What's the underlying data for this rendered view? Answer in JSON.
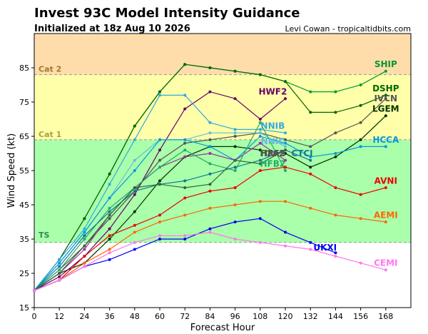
{
  "chart_data": {
    "type": "line",
    "title": "Invest 93C Model Intensity Guidance",
    "subtitle": "Initialized at 18z Aug 10 2026",
    "credit": "Levi Cowan - tropicaltidbits.com",
    "xlabel": "Forecast Hour",
    "ylabel": "Wind Speed (kt)",
    "xlim": [
      0,
      180
    ],
    "ylim": [
      15,
      95
    ],
    "x_ticks": [
      0,
      12,
      24,
      36,
      48,
      60,
      72,
      84,
      96,
      108,
      120,
      132,
      144,
      156,
      168
    ],
    "y_ticks": [
      15,
      25,
      35,
      45,
      55,
      65,
      75,
      85
    ],
    "bands": [
      {
        "label": "TS",
        "from": 34,
        "to": 64,
        "color": "#aaffaa",
        "label_color": "#2e8b57"
      },
      {
        "label": "Cat 1",
        "from": 64,
        "to": 83,
        "color": "#ffffaa",
        "label_color": "#a8a040"
      },
      {
        "label": "Cat 2",
        "from": 83,
        "to": 95,
        "color": "#ffddaa",
        "label_color": "#a07830"
      }
    ],
    "series": [
      {
        "name": "SHIP",
        "color": "#009933",
        "x": [
          0,
          12,
          24,
          36,
          48,
          60,
          72,
          84,
          96,
          108,
          120,
          132,
          144,
          156,
          168
        ],
        "y": [
          20,
          29,
          41,
          54,
          68,
          78,
          86,
          85,
          84,
          83,
          81,
          78,
          78,
          80,
          84
        ]
      },
      {
        "name": "DSHP",
        "color": "#006600",
        "x": [
          0,
          12,
          24,
          36,
          48,
          60,
          72,
          84,
          96,
          108,
          120,
          132,
          144,
          156,
          168
        ],
        "y": [
          20,
          29,
          41,
          54,
          68,
          78,
          86,
          85,
          84,
          83,
          81,
          72,
          72,
          74,
          77
        ]
      },
      {
        "name": "IVCN",
        "color": "#555555",
        "x": [
          0,
          12,
          24,
          36,
          48,
          60,
          72,
          84,
          96,
          108,
          120,
          132,
          144,
          156,
          168
        ],
        "y": [
          20,
          26,
          33,
          41,
          49,
          58,
          63,
          64,
          65,
          66,
          64,
          62,
          66,
          69,
          76
        ]
      },
      {
        "name": "LGEM",
        "color": "#003300",
        "x": [
          0,
          12,
          24,
          36,
          48,
          60,
          72,
          84,
          96,
          108,
          120,
          132,
          144,
          156,
          168
        ],
        "y": [
          20,
          25,
          28,
          35,
          43,
          52,
          59,
          62,
          62,
          61,
          60,
          56,
          59,
          64,
          71
        ]
      },
      {
        "name": "HWF2",
        "color": "#660066",
        "x": [
          0,
          12,
          24,
          36,
          48,
          60,
          72,
          84,
          96,
          108,
          120
        ],
        "y": [
          20,
          24,
          30,
          38,
          48,
          61,
          73,
          78,
          76,
          70,
          76
        ]
      },
      {
        "name": "NNIB",
        "color": "#33aadd",
        "x": [
          0,
          12,
          24,
          36,
          48,
          60,
          72,
          84,
          96,
          108,
          120
        ],
        "y": [
          20,
          29,
          38,
          51,
          64,
          77,
          77,
          69,
          67,
          67,
          66
        ]
      },
      {
        "name": "NNIC",
        "color": "#66bbdd",
        "x": [
          0,
          12,
          24,
          36,
          48,
          60,
          72,
          84,
          96,
          108,
          120
        ],
        "y": [
          20,
          28,
          37,
          47,
          58,
          64,
          64,
          66,
          66,
          66,
          62
        ]
      },
      {
        "name": "HCCA",
        "color": "#0099dd",
        "x": [
          0,
          12,
          24,
          36,
          48,
          60,
          72,
          84,
          96,
          108,
          120,
          132,
          144,
          156,
          168
        ],
        "y": [
          20,
          28,
          37,
          47,
          55,
          64,
          64,
          62,
          58,
          65,
          63,
          59,
          60,
          62,
          62
        ]
      },
      {
        "name": "HAFS",
        "color": "#993399",
        "x": [
          0,
          12,
          24,
          36,
          48,
          60,
          72,
          84,
          96,
          108,
          120
        ],
        "y": [
          20,
          25,
          32,
          42,
          50,
          56,
          59,
          60,
          58,
          63,
          58
        ]
      },
      {
        "name": "HFB2",
        "color": "#22aa66",
        "x": [
          0,
          12,
          24,
          36,
          48,
          60,
          72,
          84,
          96,
          108,
          120
        ],
        "y": [
          20,
          26,
          35,
          44,
          50,
          56,
          61,
          57,
          55,
          69,
          55
        ]
      },
      {
        "name": "CTCI",
        "color": "#117799",
        "x": [
          0,
          12,
          24,
          36,
          48,
          60,
          72,
          84,
          96,
          108,
          120,
          132
        ],
        "y": [
          20,
          27,
          36,
          43,
          49,
          51,
          52,
          54,
          56,
          58,
          61,
          58
        ]
      },
      {
        "name": "HFA2",
        "color": "#336633",
        "x": [
          0,
          12,
          24,
          36,
          48,
          60,
          72,
          84,
          96,
          108,
          120
        ],
        "y": [
          20,
          25,
          33,
          42,
          50,
          51,
          50,
          51,
          58,
          57,
          61
        ]
      },
      {
        "name": "AVNI",
        "color": "#ee0000",
        "x": [
          0,
          12,
          24,
          36,
          48,
          60,
          72,
          84,
          96,
          108,
          120,
          132,
          144,
          156,
          168
        ],
        "y": [
          20,
          23,
          30,
          36,
          39,
          42,
          47,
          49,
          50,
          55,
          56,
          54,
          50,
          48,
          50
        ]
      },
      {
        "name": "AEMI",
        "color": "#ff6600",
        "x": [
          0,
          12,
          24,
          36,
          48,
          60,
          72,
          84,
          96,
          108,
          120,
          132,
          144,
          156,
          168
        ],
        "y": [
          20,
          23,
          28,
          32,
          37,
          40,
          42,
          44,
          45,
          46,
          46,
          44,
          42,
          41,
          40
        ]
      },
      {
        "name": "UKXI",
        "color": "#0000ee",
        "x": [
          0,
          12,
          24,
          36,
          48,
          60,
          72,
          84,
          96,
          108,
          120,
          132,
          144
        ],
        "y": [
          20,
          23,
          27,
          29,
          32,
          35,
          35,
          38,
          40,
          41,
          37,
          34,
          31
        ]
      },
      {
        "name": "CEMI",
        "color": "#ff77ee",
        "x": [
          0,
          12,
          24,
          36,
          48,
          60,
          72,
          84,
          96,
          108,
          120,
          132,
          144,
          156,
          168
        ],
        "y": [
          20,
          23,
          27,
          31,
          34,
          36,
          36,
          37,
          35,
          34,
          33,
          32,
          30,
          28,
          26
        ]
      }
    ],
    "labels": [
      {
        "text": "SHIP",
        "x": 168,
        "y": 86,
        "color": "#009933"
      },
      {
        "text": "DSHP",
        "x": 168,
        "y": 79,
        "color": "#006600"
      },
      {
        "text": "IVCN",
        "x": 168,
        "y": 76,
        "color": "#555555"
      },
      {
        "text": "LGEM",
        "x": 168,
        "y": 73,
        "color": "#003300"
      },
      {
        "text": "HWF2",
        "x": 114,
        "y": 78,
        "color": "#660066"
      },
      {
        "text": "NNIB",
        "x": 114,
        "y": 68,
        "color": "#33aadd"
      },
      {
        "text": "NNIC",
        "x": 114,
        "y": 63.5,
        "color": "#66bbdd"
      },
      {
        "text": "HCCA",
        "x": 168,
        "y": 64,
        "color": "#0099dd"
      },
      {
        "text": "HAFS",
        "x": 114,
        "y": 60,
        "color": "#993399"
      },
      {
        "text": "HFA2",
        "x": 114,
        "y": 60,
        "color": "#336633"
      },
      {
        "text": "CTCI",
        "x": 128,
        "y": 60,
        "color": "#117799"
      },
      {
        "text": "HFB2",
        "x": 114,
        "y": 57,
        "color": "#22aa66"
      },
      {
        "text": "AVNI",
        "x": 168,
        "y": 52,
        "color": "#ee0000"
      },
      {
        "text": "AEMI",
        "x": 168,
        "y": 42,
        "color": "#ff6600"
      },
      {
        "text": "UKXI",
        "x": 139,
        "y": 32.5,
        "color": "#0000ee"
      },
      {
        "text": "CEMI",
        "x": 168,
        "y": 28,
        "color": "#ff77ee"
      }
    ]
  }
}
